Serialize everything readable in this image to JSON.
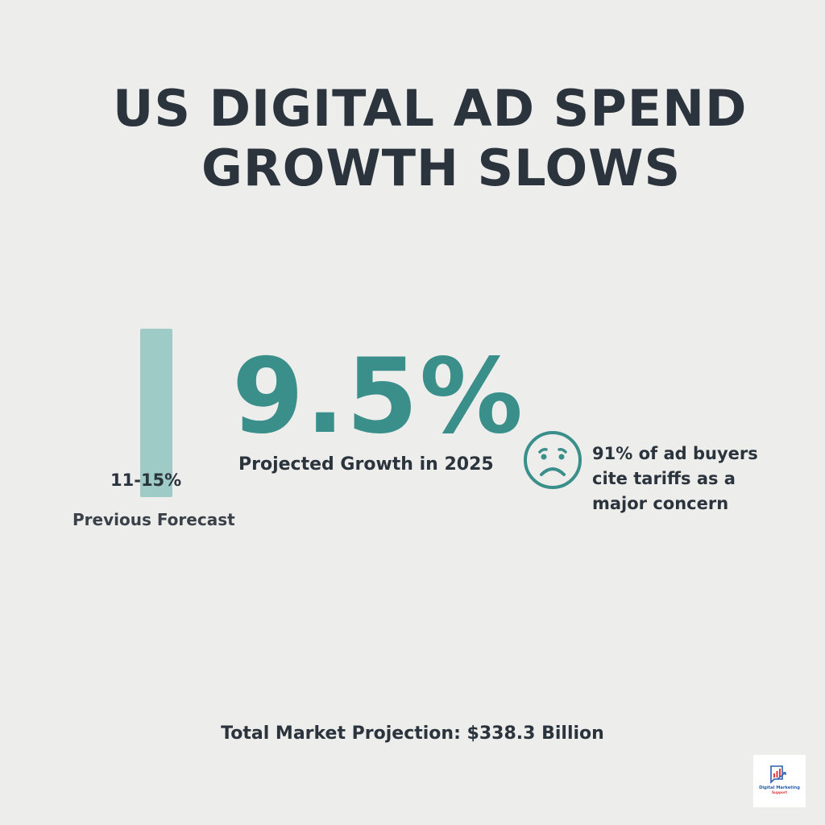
{
  "title": {
    "line1": "US DIGITAL AD SPEND",
    "line2": "GROWTH SLOWS"
  },
  "previous_forecast": {
    "value": "11-15%",
    "label": "Previous Forecast"
  },
  "projected": {
    "value": "9.5%",
    "label": "Projected Growth in 2025"
  },
  "concern": {
    "icon": "sad-face-icon",
    "lines": [
      "91% of ad buyers",
      "cite tariffs as a",
      "major concern"
    ]
  },
  "total": "Total Market Projection: $338.3 Billion",
  "logo": {
    "text": "Digital Marketing Support"
  },
  "colors": {
    "accent": "#3a8f8a",
    "bar": "#9fcbc6",
    "text": "#2b343c",
    "background": "#ededec"
  }
}
